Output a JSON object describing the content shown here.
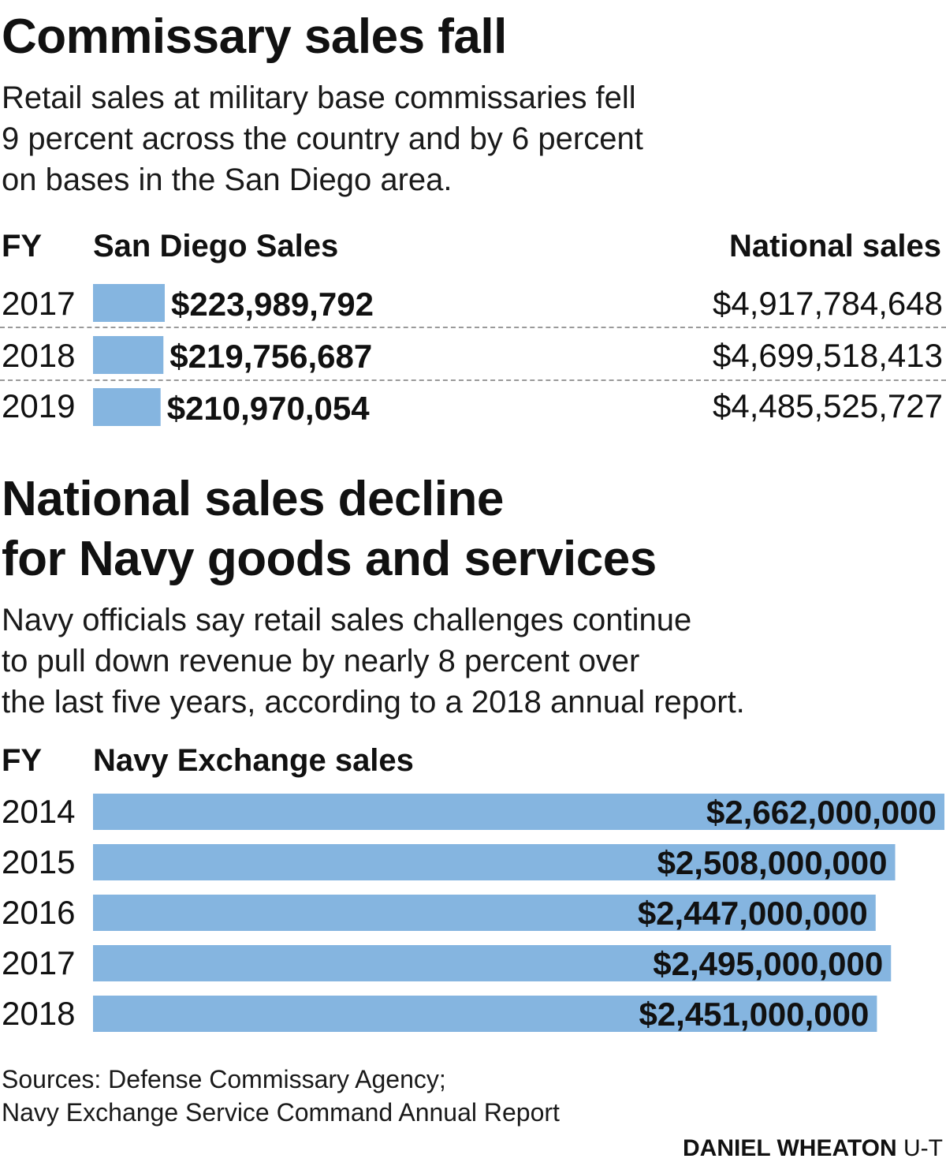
{
  "section1": {
    "title": "Commissary sales fall",
    "dek_lines": [
      "Retail sales at military base commissaries fell",
      "9 percent across the country and by 6 percent",
      "on bases in the San Diego area."
    ],
    "col_fy": "FY",
    "col_sd": "San Diego Sales",
    "col_nat": "National sales"
  },
  "section2": {
    "title_lines": [
      "National sales decline",
      "for Navy goods and services"
    ],
    "dek_lines": [
      "Navy officials say retail sales challenges continue",
      "to pull down revenue by nearly 8 percent over",
      "the last five years, according to a 2018 annual report."
    ],
    "col_fy": "FY",
    "col_sales": "Navy Exchange sales"
  },
  "colors": {
    "bar": "#85b5e0",
    "text": "#111111",
    "divider": "#9a9a9a"
  },
  "chart_data": [
    {
      "type": "bar",
      "orientation": "horizontal",
      "categories": [
        "2017",
        "2018",
        "2019"
      ],
      "series": [
        {
          "name": "San Diego Sales",
          "values": [
            223989792,
            219756687,
            210970054
          ],
          "labels": [
            "$223,989,792",
            "$219,756,687",
            "$210,970,054"
          ]
        }
      ],
      "table_column": {
        "name": "National sales",
        "values": [
          4917784648,
          4699518413,
          4485525727
        ],
        "labels": [
          "$4,917,784,648",
          "$4,699,518,413",
          "$4,485,525,727"
        ]
      }
    },
    {
      "type": "bar",
      "orientation": "horizontal",
      "categories": [
        "2014",
        "2015",
        "2016",
        "2017",
        "2018"
      ],
      "series": [
        {
          "name": "Navy Exchange sales",
          "values": [
            2662000000,
            2508000000,
            2447000000,
            2495000000,
            2451000000
          ],
          "labels": [
            "$2,662,000,000",
            "$2,508,000,000",
            "$2,447,000,000",
            "$2,495,000,000",
            "$2,451,000,000"
          ]
        }
      ]
    }
  ],
  "footer": {
    "sources_lines": [
      "Sources: Defense Commissary Agency;",
      "Navy Exchange Service Command Annual Report"
    ],
    "credit_name": "DANIEL WHEATON",
    "credit_org": "U-T"
  }
}
